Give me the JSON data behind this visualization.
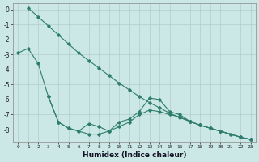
{
  "xlabel": "Humidex (Indice chaleur)",
  "bg_color": "#cce8e6",
  "grid_color": "#b0cccc",
  "line_color": "#2e7d6e",
  "ylim": [
    -8.8,
    0.4
  ],
  "xlim": [
    -0.5,
    23.5
  ],
  "yticks": [
    0,
    -1,
    -2,
    -3,
    -4,
    -5,
    -6,
    -7,
    -8
  ],
  "line_smooth_x": [
    1,
    2,
    3,
    4,
    5,
    6,
    7,
    8,
    9,
    10,
    11,
    12,
    13,
    14,
    15,
    16,
    17,
    18,
    19,
    20,
    21,
    22,
    23
  ],
  "line_smooth_y": [
    0.1,
    -0.5,
    -1.1,
    -1.7,
    -2.3,
    -2.9,
    -3.4,
    -3.9,
    -4.4,
    -4.9,
    -5.35,
    -5.8,
    -6.2,
    -6.55,
    -6.9,
    -7.2,
    -7.45,
    -7.7,
    -7.9,
    -8.1,
    -8.3,
    -8.5,
    -8.65
  ],
  "line_mid_x": [
    0,
    1,
    2,
    3,
    4,
    5,
    6,
    7,
    8,
    9,
    10,
    11,
    12,
    13,
    14,
    15,
    16,
    17,
    18,
    19,
    20,
    21,
    22,
    23
  ],
  "line_mid_y": [
    -2.9,
    -2.6,
    -3.6,
    -5.8,
    -7.5,
    -7.9,
    -8.1,
    -8.3,
    -8.3,
    -8.1,
    -7.8,
    -7.5,
    -7.0,
    -6.7,
    -6.8,
    -7.0,
    -7.15,
    -7.45,
    -7.7,
    -7.9,
    -8.1,
    -8.3,
    -8.5,
    -8.65
  ],
  "line_low_x": [
    3,
    4,
    5,
    6,
    7,
    8,
    9,
    10,
    11,
    12,
    13,
    14,
    15,
    16,
    17,
    18,
    19,
    20,
    21,
    22,
    23
  ],
  "line_low_y": [
    -5.8,
    -7.5,
    -7.9,
    -8.1,
    -7.6,
    -7.8,
    -8.1,
    -7.5,
    -7.3,
    -6.8,
    -5.9,
    -6.0,
    -6.8,
    -7.0,
    -7.45,
    -7.7,
    -7.9,
    -8.1,
    -8.3,
    -8.5,
    -8.65
  ]
}
